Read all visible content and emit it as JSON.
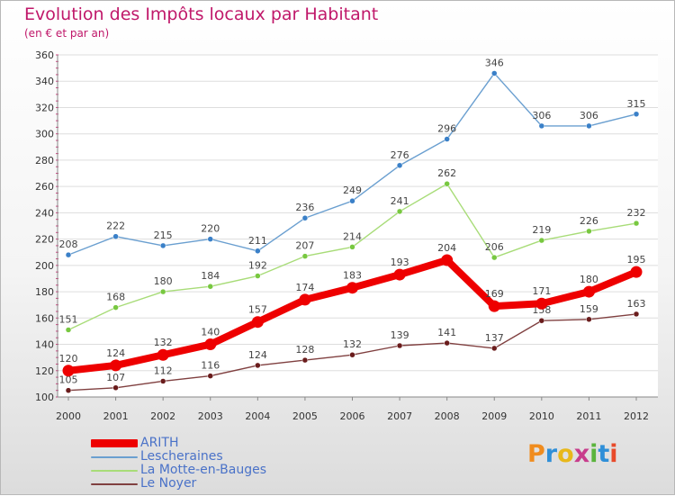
{
  "header": {
    "title": "Evolution des Impôts locaux par Habitant",
    "subtitle": "(en € et par an)"
  },
  "logo": {
    "text": "Proxiti",
    "colors": [
      "#f08c1e",
      "#2f8fd8",
      "#e8b81a",
      "#c83c8c",
      "#5ab43c",
      "#2f8fd8",
      "#e84a2a"
    ]
  },
  "chart_data": {
    "type": "line",
    "title": "Evolution des Impôts locaux par Habitant",
    "subtitle": "(en € et par an)",
    "xlabel": "",
    "ylabel": "",
    "x": [
      2000,
      2001,
      2002,
      2003,
      2004,
      2005,
      2006,
      2007,
      2008,
      2009,
      2010,
      2011,
      2012
    ],
    "ylim": [
      100,
      360
    ],
    "yticks": [
      100,
      120,
      140,
      160,
      180,
      200,
      220,
      240,
      260,
      280,
      300,
      320,
      340,
      360
    ],
    "grid": "horizontal",
    "legend_position": "bottom-left",
    "series": [
      {
        "name": "Lescheraines",
        "color": "#6a9fd0",
        "marker": "#3a80c8",
        "thick": false,
        "values": [
          208,
          222,
          215,
          220,
          211,
          236,
          249,
          276,
          296,
          346,
          306,
          306,
          315
        ]
      },
      {
        "name": "La Motte-en-Bauges",
        "color": "#a8dc78",
        "marker": "#78c840",
        "thick": false,
        "values": [
          151,
          168,
          180,
          184,
          192,
          207,
          214,
          241,
          262,
          206,
          219,
          226,
          232
        ]
      },
      {
        "name": "Le Noyer",
        "color": "#804040",
        "marker": "#6a1c1c",
        "thick": false,
        "values": [
          105,
          107,
          112,
          116,
          124,
          128,
          132,
          139,
          141,
          137,
          158,
          159,
          163
        ]
      },
      {
        "name": "ARITH",
        "color": "#ee0000",
        "marker": "#ee0000",
        "thick": true,
        "values": [
          120,
          124,
          132,
          140,
          157,
          174,
          183,
          193,
          204,
          169,
          171,
          180,
          195
        ]
      }
    ],
    "legend": [
      "ARITH",
      "Lescheraines",
      "La Motte-en-Bauges",
      "Le Noyer"
    ]
  }
}
